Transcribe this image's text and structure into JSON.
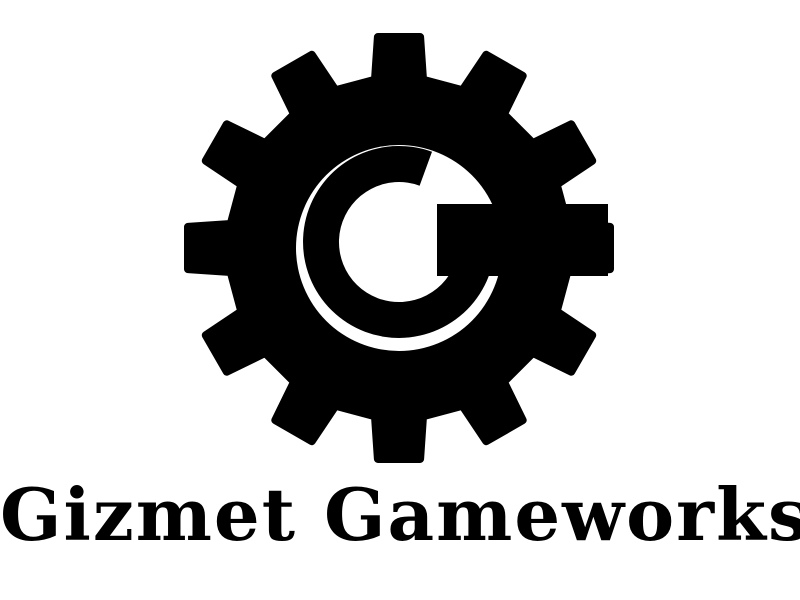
{
  "brand": {
    "name": "Gizmet Gameworks"
  },
  "logo": {
    "icon": "gear-g-icon",
    "color": "#000000",
    "background": "#ffffff"
  }
}
